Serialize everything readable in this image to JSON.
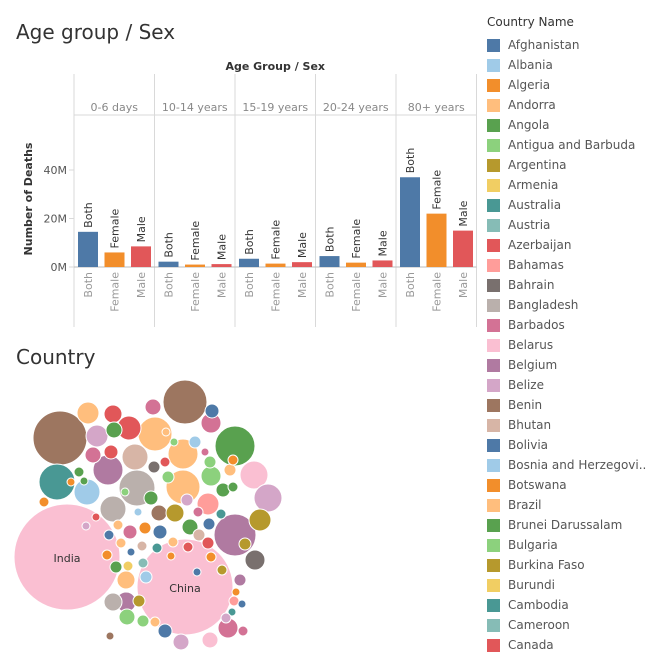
{
  "titles": {
    "top": "Age group / Sex",
    "country": "Country"
  },
  "chart_data": [
    {
      "type": "bar",
      "title": "Age Group / Sex",
      "ylabel": "Number of Deaths",
      "yticks": [
        "0M",
        "20M",
        "40M"
      ],
      "ylim": [
        0,
        60
      ],
      "unit": "M",
      "panels": [
        {
          "label": "0-6 days",
          "categories": [
            "Both",
            "Female",
            "Male"
          ],
          "values": [
            14.5,
            6.0,
            8.5
          ]
        },
        {
          "label": "10-14 years",
          "categories": [
            "Both",
            "Female",
            "Male"
          ],
          "values": [
            2.2,
            1.0,
            1.2
          ]
        },
        {
          "label": "15-19 years",
          "categories": [
            "Both",
            "Female",
            "Male"
          ],
          "values": [
            3.4,
            1.4,
            2.0
          ]
        },
        {
          "label": "20-24 years",
          "categories": [
            "Both",
            "Female",
            "Male"
          ],
          "values": [
            4.5,
            1.8,
            2.7
          ]
        },
        {
          "label": "80+ years",
          "categories": [
            "Both",
            "Female",
            "Male"
          ],
          "values": [
            37.0,
            22.0,
            15.0
          ]
        }
      ],
      "colors": {
        "Both": "#4e79a7",
        "Female": "#f28e2b",
        "Male": "#e15759"
      }
    },
    {
      "type": "bubble",
      "labels": [
        "India",
        "China"
      ]
    }
  ],
  "legend": {
    "title": "Country Name",
    "items": [
      {
        "label": "Afghanistan",
        "color": "#4e79a7"
      },
      {
        "label": "Albania",
        "color": "#a0cbe8"
      },
      {
        "label": "Algeria",
        "color": "#f28e2b"
      },
      {
        "label": "Andorra",
        "color": "#ffbe7d"
      },
      {
        "label": "Angola",
        "color": "#59a14f"
      },
      {
        "label": "Antigua and Barbuda",
        "color": "#8cd17d"
      },
      {
        "label": "Argentina",
        "color": "#b6992d"
      },
      {
        "label": "Armenia",
        "color": "#f1ce63"
      },
      {
        "label": "Australia",
        "color": "#499894"
      },
      {
        "label": "Austria",
        "color": "#86bcb6"
      },
      {
        "label": "Azerbaijan",
        "color": "#e15759"
      },
      {
        "label": "Bahamas",
        "color": "#ff9d9a"
      },
      {
        "label": "Bahrain",
        "color": "#79706e"
      },
      {
        "label": "Bangladesh",
        "color": "#bab0ac"
      },
      {
        "label": "Barbados",
        "color": "#d37295"
      },
      {
        "label": "Belarus",
        "color": "#fabfd2"
      },
      {
        "label": "Belgium",
        "color": "#b07aa1"
      },
      {
        "label": "Belize",
        "color": "#d4a6c8"
      },
      {
        "label": "Benin",
        "color": "#9d7660"
      },
      {
        "label": "Bhutan",
        "color": "#d7b5a6"
      },
      {
        "label": "Bolivia",
        "color": "#4e79a7"
      },
      {
        "label": "Bosnia and Herzegovi..",
        "color": "#a0cbe8"
      },
      {
        "label": "Botswana",
        "color": "#f28e2b"
      },
      {
        "label": "Brazil",
        "color": "#ffbe7d"
      },
      {
        "label": "Brunei Darussalam",
        "color": "#59a14f"
      },
      {
        "label": "Bulgaria",
        "color": "#8cd17d"
      },
      {
        "label": "Burkina Faso",
        "color": "#b6992d"
      },
      {
        "label": "Burundi",
        "color": "#f1ce63"
      },
      {
        "label": "Cambodia",
        "color": "#499894"
      },
      {
        "label": "Cameroon",
        "color": "#86bcb6"
      },
      {
        "label": "Canada",
        "color": "#e15759"
      }
    ]
  }
}
